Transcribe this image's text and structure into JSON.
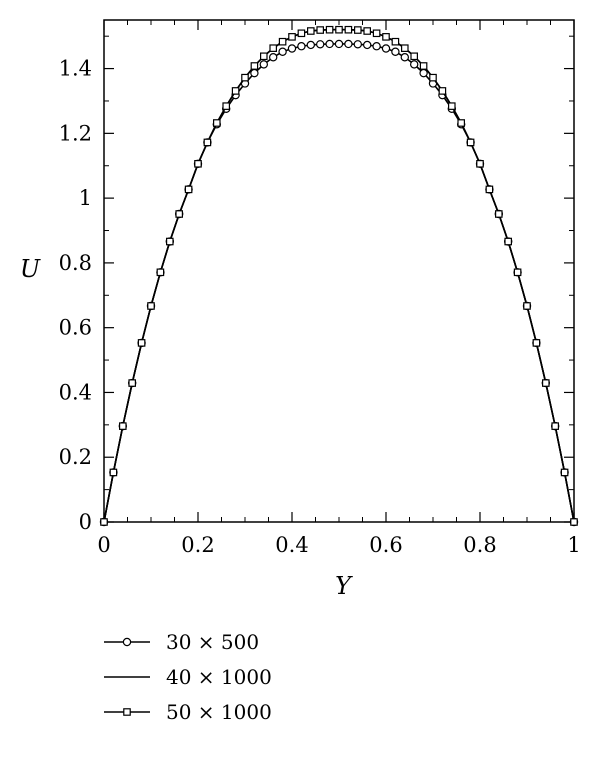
{
  "chart_data": {
    "type": "line",
    "xlabel": "Y",
    "ylabel": "U",
    "xlim": [
      0,
      1
    ],
    "ylim": [
      0,
      1.55
    ],
    "x_ticks": [
      0,
      0.2,
      0.4,
      0.6,
      0.8,
      1
    ],
    "x_tick_labels": [
      "0",
      "0.2",
      "0.4",
      "0.6",
      "0.8",
      "1"
    ],
    "y_ticks": [
      0,
      0.2,
      0.4,
      0.6,
      0.8,
      1,
      1.2,
      1.4
    ],
    "y_tick_labels": [
      "0",
      "0.2",
      "0.4",
      "0.6",
      "0.8",
      "1",
      "1.2",
      "1.4"
    ],
    "grid": false,
    "legend_position": "bottom-left, below plot",
    "x": [
      0,
      0.04,
      0.08,
      0.12,
      0.16,
      0.2,
      0.24,
      0.28,
      0.32,
      0.36,
      0.4,
      0.44,
      0.48,
      0.52,
      0.56,
      0.6,
      0.64,
      0.68,
      0.72,
      0.76,
      0.8,
      0.84,
      0.88,
      0.92,
      0.96,
      1
    ],
    "series": [
      {
        "name": "30 × 500",
        "marker": "circle",
        "x": [
          0,
          0.02,
          0.04,
          0.06,
          0.08,
          0.1,
          0.12,
          0.14,
          0.16,
          0.18,
          0.2,
          0.22,
          0.24,
          0.26,
          0.28,
          0.3,
          0.32,
          0.34,
          0.36,
          0.38,
          0.4,
          0.42,
          0.44,
          0.46,
          0.48,
          0.5,
          0.52,
          0.54,
          0.56,
          0.58,
          0.6,
          0.62,
          0.64,
          0.66,
          0.68,
          0.7,
          0.72,
          0.74,
          0.76,
          0.78,
          0.8,
          0.82,
          0.84,
          0.86,
          0.88,
          0.9,
          0.92,
          0.94,
          0.96,
          0.98,
          1
        ],
        "values": [
          0,
          0.153,
          0.296,
          0.429,
          0.553,
          0.667,
          0.771,
          0.866,
          0.951,
          1.027,
          1.106,
          1.172,
          1.228,
          1.276,
          1.318,
          1.354,
          1.386,
          1.413,
          1.435,
          1.452,
          1.462,
          1.469,
          1.473,
          1.475,
          1.476,
          1.476,
          1.476,
          1.475,
          1.473,
          1.469,
          1.462,
          1.452,
          1.435,
          1.413,
          1.386,
          1.354,
          1.318,
          1.276,
          1.228,
          1.172,
          1.106,
          1.027,
          0.951,
          0.866,
          0.771,
          0.667,
          0.553,
          0.429,
          0.296,
          0.153,
          0
        ]
      },
      {
        "name": "40 × 1000",
        "marker": "none",
        "x": [
          0,
          0.02,
          0.04,
          0.06,
          0.08,
          0.1,
          0.12,
          0.14,
          0.16,
          0.18,
          0.2,
          0.22,
          0.24,
          0.26,
          0.28,
          0.3,
          0.32,
          0.34,
          0.36,
          0.38,
          0.4,
          0.42,
          0.44,
          0.46,
          0.48,
          0.5,
          0.52,
          0.54,
          0.56,
          0.58,
          0.6,
          0.62,
          0.64,
          0.66,
          0.68,
          0.7,
          0.72,
          0.74,
          0.76,
          0.78,
          0.8,
          0.82,
          0.84,
          0.86,
          0.88,
          0.9,
          0.92,
          0.94,
          0.96,
          0.98,
          1
        ],
        "values": [
          0,
          0.153,
          0.296,
          0.429,
          0.553,
          0.667,
          0.771,
          0.866,
          0.951,
          1.027,
          1.106,
          1.172,
          1.232,
          1.284,
          1.331,
          1.372,
          1.408,
          1.438,
          1.463,
          1.483,
          1.498,
          1.509,
          1.516,
          1.519,
          1.52,
          1.52,
          1.52,
          1.519,
          1.516,
          1.509,
          1.498,
          1.483,
          1.463,
          1.438,
          1.408,
          1.372,
          1.331,
          1.284,
          1.232,
          1.172,
          1.106,
          1.027,
          0.951,
          0.866,
          0.771,
          0.667,
          0.553,
          0.429,
          0.296,
          0.153,
          0
        ]
      },
      {
        "name": "50 × 1000",
        "marker": "square",
        "x": [
          0,
          0.02,
          0.04,
          0.06,
          0.08,
          0.1,
          0.12,
          0.14,
          0.16,
          0.18,
          0.2,
          0.22,
          0.24,
          0.26,
          0.28,
          0.3,
          0.32,
          0.34,
          0.36,
          0.38,
          0.4,
          0.42,
          0.44,
          0.46,
          0.48,
          0.5,
          0.52,
          0.54,
          0.56,
          0.58,
          0.6,
          0.62,
          0.64,
          0.66,
          0.68,
          0.7,
          0.72,
          0.74,
          0.76,
          0.78,
          0.8,
          0.82,
          0.84,
          0.86,
          0.88,
          0.9,
          0.92,
          0.94,
          0.96,
          0.98,
          1
        ],
        "values": [
          0,
          0.153,
          0.296,
          0.429,
          0.553,
          0.667,
          0.771,
          0.866,
          0.951,
          1.027,
          1.106,
          1.172,
          1.232,
          1.284,
          1.331,
          1.372,
          1.408,
          1.438,
          1.463,
          1.483,
          1.498,
          1.509,
          1.516,
          1.519,
          1.52,
          1.52,
          1.52,
          1.519,
          1.516,
          1.509,
          1.498,
          1.483,
          1.463,
          1.438,
          1.408,
          1.372,
          1.331,
          1.284,
          1.232,
          1.172,
          1.106,
          1.027,
          0.951,
          0.866,
          0.771,
          0.667,
          0.553,
          0.429,
          0.296,
          0.153,
          0
        ]
      }
    ]
  },
  "colors": {
    "line": "#000000",
    "background": "#ffffff"
  }
}
